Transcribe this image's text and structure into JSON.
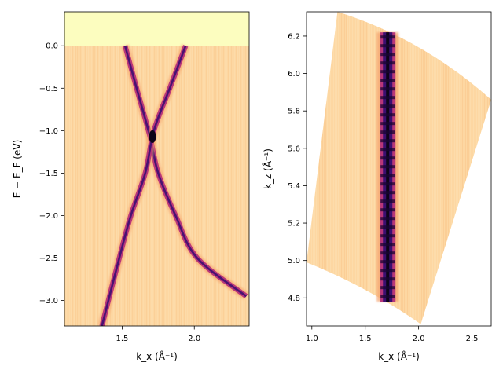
{
  "chart_data": [
    {
      "type": "heatmap",
      "title": "",
      "xlabel": "k_x (Å⁻¹)",
      "ylabel": "E − E_F (eV)",
      "xlim": [
        1.1,
        2.38
      ],
      "ylim": [
        -3.3,
        0.4
      ],
      "xticks": [
        1.5,
        2.0
      ],
      "xtick_labels": [
        "1.5",
        "2.0"
      ],
      "yticks": [
        0.0,
        -0.5,
        -1.0,
        -1.5,
        -2.0,
        -2.5,
        -3.0
      ],
      "ytick_labels": [
        "0.0",
        "−0.5",
        "−1.0",
        "−1.5",
        "−2.0",
        "−2.5",
        "−3.0"
      ],
      "colormap": "magma",
      "above_fermi_color": "#fcfdbf",
      "background_color": "#fdd7a2",
      "bands": [
        {
          "name": "",
          "points": [
            [
              1.52,
              0.0
            ],
            [
              1.6,
              -0.5
            ],
            [
              1.69,
              -1.05
            ],
            [
              1.75,
              -1.5
            ],
            [
              1.87,
              -2.0
            ],
            [
              2.02,
              -2.5
            ],
            [
              2.36,
              -2.95
            ]
          ]
        },
        {
          "name": "",
          "points": [
            [
              1.94,
              0.0
            ],
            [
              1.83,
              -0.5
            ],
            [
              1.72,
              -1.0
            ],
            [
              1.66,
              -1.5
            ],
            [
              1.56,
              -2.0
            ],
            [
              1.48,
              -2.5
            ],
            [
              1.36,
              -3.3
            ]
          ]
        }
      ],
      "dirac_point": [
        1.71,
        -1.07
      ]
    },
    {
      "type": "heatmap",
      "title": "",
      "xlabel": "k_x (Å⁻¹)",
      "ylabel": "k_z (Å⁻¹)",
      "xlim": [
        0.95,
        2.68
      ],
      "ylim": [
        4.65,
        6.33
      ],
      "xticks": [
        1.0,
        1.5,
        2.0,
        2.5
      ],
      "xtick_labels": [
        "1.0",
        "1.5",
        "2.0",
        "2.5"
      ],
      "yticks": [
        4.8,
        5.0,
        5.2,
        5.4,
        5.6,
        5.8,
        6.0,
        6.2
      ],
      "ytick_labels": [
        "4.8",
        "5.0",
        "5.2",
        "5.4",
        "5.6",
        "5.8",
        "6.0",
        "6.2"
      ],
      "colormap": "magma",
      "background_color": "#fdd7a2",
      "band_center_kx": 1.71,
      "band_kz_range": [
        4.78,
        6.22
      ],
      "map_boundary": [
        [
          0.95,
          4.99
        ],
        [
          1.24,
          6.33
        ],
        [
          2.68,
          5.86
        ],
        [
          2.02,
          4.66
        ],
        [
          0.95,
          4.99
        ]
      ]
    }
  ]
}
